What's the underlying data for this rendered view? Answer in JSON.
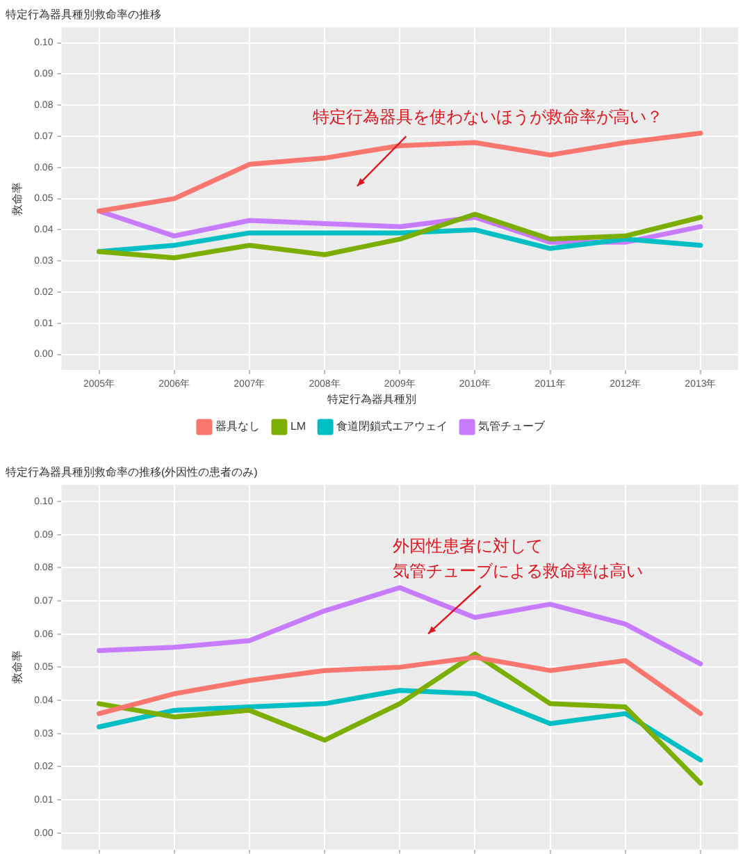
{
  "chart_data": [
    {
      "type": "line",
      "title": "特定行為器具種別救命率の推移",
      "ylabel": "救命率",
      "legend_title": "特定行為器具種別",
      "categories": [
        "2005年",
        "2006年",
        "2007年",
        "2008年",
        "2009年",
        "2010年",
        "2011年",
        "2012年",
        "2013年"
      ],
      "series": [
        {
          "name": "器具なし",
          "color": "#f8766d",
          "values": [
            0.046,
            0.05,
            0.061,
            0.063,
            0.067,
            0.068,
            0.064,
            0.068,
            0.071
          ]
        },
        {
          "name": "LM",
          "color": "#7cae00",
          "values": [
            0.033,
            0.031,
            0.035,
            0.032,
            0.037,
            0.045,
            0.037,
            0.038,
            0.044
          ]
        },
        {
          "name": "食道閉鎖式エアウェイ",
          "color": "#00bfc4",
          "values": [
            0.033,
            0.035,
            0.039,
            0.039,
            0.039,
            0.04,
            0.034,
            0.037,
            0.035
          ]
        },
        {
          "name": "気管チューブ",
          "color": "#c77cff",
          "values": [
            0.046,
            0.038,
            0.043,
            0.042,
            0.041,
            0.044,
            0.036,
            0.036,
            0.041
          ]
        }
      ],
      "ylim": [
        -0.005,
        0.105
      ],
      "yticks": [
        {
          "value": 0,
          "label": "0.00"
        },
        {
          "value": 0.01,
          "label": "0.01"
        },
        {
          "value": 0.02,
          "label": "0.02"
        },
        {
          "value": 0.03,
          "label": "0.03"
        },
        {
          "value": 0.04,
          "label": "0.04"
        },
        {
          "value": 0.05,
          "label": "0.05"
        },
        {
          "value": 0.06,
          "label": "0.06"
        },
        {
          "value": 0.07,
          "label": "0.07"
        },
        {
          "value": 0.08,
          "label": "0.08"
        },
        {
          "value": 0.09,
          "label": "0.09"
        },
        {
          "value": 0.1,
          "label": "0.10"
        }
      ],
      "grid": true,
      "legend": "bottom",
      "marker": "none",
      "line_style": "solid",
      "annotations": [
        "特定行為器具を使わないほうが救命率が高い？"
      ]
    },
    {
      "type": "line",
      "title": "特定行為器具種別救命率の推移(外因性の患者のみ)",
      "ylabel": "救命率",
      "categories": [
        null,
        null,
        null,
        null,
        null,
        null,
        null,
        null,
        null
      ],
      "series": [
        {
          "color": "#f8766d",
          "values": [
            0.036,
            0.042,
            0.046,
            0.049,
            0.05,
            0.053,
            0.049,
            0.052,
            0.036
          ]
        },
        {
          "color": "#7cae00",
          "values": [
            0.039,
            0.035,
            0.037,
            0.028,
            0.039,
            0.054,
            0.039,
            0.038,
            0.015
          ]
        },
        {
          "color": "#00bfc4",
          "values": [
            0.032,
            0.037,
            0.038,
            0.039,
            0.043,
            0.042,
            0.033,
            0.036,
            0.022
          ]
        },
        {
          "color": "#c77cff",
          "values": [
            0.055,
            0.056,
            0.058,
            0.067,
            0.074,
            0.065,
            0.069,
            0.063,
            0.051
          ]
        }
      ],
      "ylim": [
        -0.005,
        0.105
      ],
      "yticks": [
        {
          "value": 0,
          "label": "0.00"
        },
        {
          "value": 0.01,
          "label": "0.01"
        },
        {
          "value": 0.02,
          "label": "0.02"
        },
        {
          "value": 0.03,
          "label": "0.03"
        },
        {
          "value": 0.04,
          "label": "0.04"
        },
        {
          "value": 0.05,
          "label": "0.05"
        },
        {
          "value": 0.06,
          "label": "0.06"
        },
        {
          "value": 0.07,
          "label": "0.07"
        },
        {
          "value": 0.08,
          "label": "0.08"
        },
        {
          "value": 0.09,
          "label": "0.09"
        },
        {
          "value": 0.1,
          "label": "0.10"
        }
      ],
      "grid": true,
      "legend": false,
      "tick_labels": "y",
      "marker": "none",
      "line_style": "solid",
      "annotations": [
        "外因性患者に対して",
        "気管チューブによる救命率は高い"
      ]
    }
  ]
}
